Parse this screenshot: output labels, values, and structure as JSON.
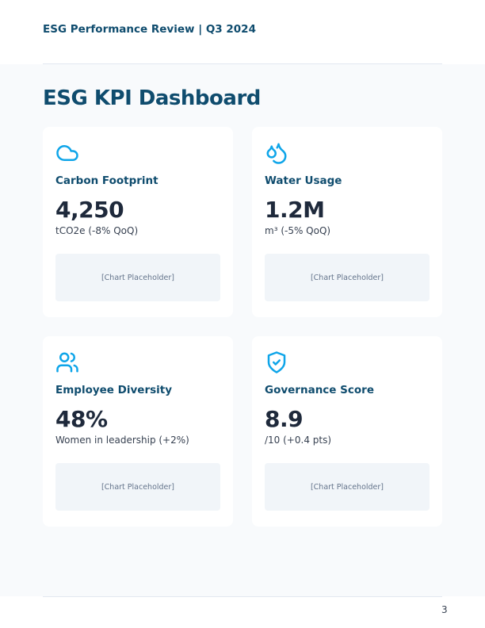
{
  "header": {
    "title": "ESG Performance Review | Q3 2024"
  },
  "page_title": "ESG KPI Dashboard",
  "accent_color": "#0ea5e9",
  "cards": [
    {
      "icon": "cloud-icon",
      "title": "Carbon Footprint",
      "value": "4,250",
      "subtitle": "tCO2e (-8% QoQ)",
      "placeholder": "[Chart Placeholder]"
    },
    {
      "icon": "water-drops-icon",
      "title": "Water Usage",
      "value": "1.2M",
      "subtitle": "m³ (-5% QoQ)",
      "placeholder": "[Chart Placeholder]"
    },
    {
      "icon": "users-icon",
      "title": "Employee Diversity",
      "value": "48%",
      "subtitle": "Women in leadership (+2%)",
      "placeholder": "[Chart Placeholder]"
    },
    {
      "icon": "shield-check-icon",
      "title": "Governance Score",
      "value": "8.9",
      "subtitle": "/10 (+0.4 pts)",
      "placeholder": "[Chart Placeholder]"
    }
  ],
  "footer": {
    "page_number": "3"
  }
}
